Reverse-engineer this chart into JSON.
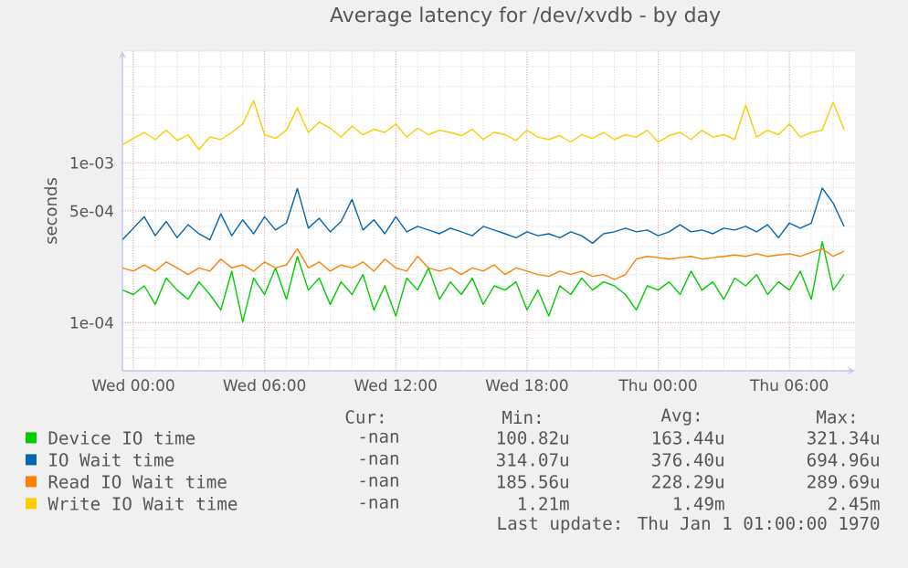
{
  "chart_data": {
    "type": "line",
    "title": "Average latency for /dev/xvdb - by day",
    "ylabel": "seconds",
    "categories": [
      null,
      "Wed 00:00",
      null,
      null,
      null,
      null,
      null,
      null,
      null,
      null,
      null,
      null,
      null,
      "Wed 06:00",
      null,
      null,
      null,
      null,
      null,
      null,
      null,
      null,
      null,
      null,
      null,
      "Wed 12:00",
      null,
      null,
      null,
      null,
      null,
      null,
      null,
      null,
      null,
      null,
      null,
      "Wed 18:00",
      null,
      null,
      null,
      null,
      null,
      null,
      null,
      null,
      null,
      null,
      null,
      "Thu 00:00",
      null,
      null,
      null,
      null,
      null,
      null,
      null,
      null,
      null,
      null,
      null,
      "Thu 06:00",
      null,
      null,
      null,
      null,
      null
    ],
    "ylim": [
      5e-05,
      0.005
    ],
    "yticks": [
      {
        "value": 0.0001,
        "label": "1e-04"
      },
      {
        "value": 0.0005,
        "label": "5e-04"
      },
      {
        "value": 0.001,
        "label": "1e-03"
      }
    ],
    "log": true,
    "grid": true,
    "legend": "bottom",
    "series": [
      {
        "name": "Device IO time",
        "color": "#00cc00",
        "values": [
          0.00016,
          0.00015,
          0.00017,
          0.00013,
          0.00019,
          0.00016,
          0.00014,
          0.00018,
          0.00015,
          0.00012,
          0.00021,
          0.000101,
          0.00019,
          0.00015,
          0.00022,
          0.00014,
          0.00026,
          0.00016,
          0.00019,
          0.00013,
          0.00018,
          0.00015,
          0.0002,
          0.00012,
          0.00017,
          0.00011,
          0.00019,
          0.00016,
          0.00022,
          0.00014,
          0.00018,
          0.00015,
          0.00019,
          0.00013,
          0.00017,
          0.00016,
          0.00018,
          0.00012,
          0.00016,
          0.00011,
          0.00017,
          0.00015,
          0.00019,
          0.00016,
          0.00018,
          0.00017,
          0.00015,
          0.00012,
          0.00017,
          0.00016,
          0.00018,
          0.00015,
          0.00021,
          0.00016,
          0.00018,
          0.00014,
          0.00019,
          0.00017,
          0.0002,
          0.00015,
          0.00018,
          0.00016,
          0.00021,
          0.00014,
          0.000321,
          0.00016,
          0.0002
        ]
      },
      {
        "name": "IO Wait time",
        "color": "#0066b3",
        "values": [
          0.00033,
          0.00039,
          0.00046,
          0.00035,
          0.00043,
          0.00034,
          0.00041,
          0.00036,
          0.00033,
          0.00048,
          0.00035,
          0.00044,
          0.00036,
          0.00046,
          0.00038,
          0.00042,
          0.00069,
          0.00039,
          0.00045,
          0.00037,
          0.00043,
          0.00059,
          0.00038,
          0.00044,
          0.00036,
          0.00046,
          0.00037,
          0.0004,
          0.00038,
          0.00036,
          0.00039,
          0.00037,
          0.00035,
          0.0004,
          0.00038,
          0.00036,
          0.00034,
          0.00037,
          0.00035,
          0.00036,
          0.00034,
          0.00037,
          0.00035,
          0.000314,
          0.00036,
          0.00037,
          0.00039,
          0.00037,
          0.00038,
          0.00035,
          0.00037,
          0.00041,
          0.00037,
          0.00038,
          0.00036,
          0.00039,
          0.00038,
          0.0004,
          0.00037,
          0.00041,
          0.00034,
          0.00042,
          0.00039,
          0.00042,
          0.000695,
          0.00056,
          0.0004
        ]
      },
      {
        "name": "Read IO Wait time",
        "color": "#ff8000",
        "values": [
          0.00022,
          0.00021,
          0.00023,
          0.00021,
          0.00024,
          0.00022,
          0.0002,
          0.00022,
          0.00021,
          0.00025,
          0.00022,
          0.00023,
          0.00021,
          0.00024,
          0.00022,
          0.00023,
          0.00029,
          0.00022,
          0.00024,
          0.00021,
          0.00023,
          0.00022,
          0.00024,
          0.00021,
          0.00025,
          0.00022,
          0.00021,
          0.00026,
          0.00022,
          0.00021,
          0.00022,
          0.0002,
          0.00022,
          0.00021,
          0.00023,
          0.0002,
          0.00022,
          0.00021,
          0.0002,
          0.000195,
          0.00021,
          0.0002,
          0.00021,
          0.000195,
          0.0002,
          0.000186,
          0.0002,
          0.00025,
          0.00026,
          0.000255,
          0.00025,
          0.000255,
          0.00026,
          0.00025,
          0.000255,
          0.00026,
          0.000265,
          0.00026,
          0.00027,
          0.00026,
          0.000265,
          0.00027,
          0.00026,
          0.000275,
          0.00029,
          0.00026,
          0.00028
        ]
      },
      {
        "name": "Write IO Wait time",
        "color": "#ffcc00",
        "values": [
          0.0013,
          0.00142,
          0.00155,
          0.0014,
          0.0016,
          0.00138,
          0.0015,
          0.00121,
          0.00145,
          0.0014,
          0.00155,
          0.00175,
          0.00245,
          0.0015,
          0.00142,
          0.0016,
          0.0022,
          0.00155,
          0.0018,
          0.00165,
          0.00145,
          0.0017,
          0.0015,
          0.00162,
          0.00155,
          0.00175,
          0.00145,
          0.00165,
          0.0015,
          0.0016,
          0.00155,
          0.00148,
          0.00162,
          0.0014,
          0.00155,
          0.0015,
          0.00138,
          0.0016,
          0.00145,
          0.0014,
          0.00148,
          0.00135,
          0.0015,
          0.00142,
          0.00155,
          0.0014,
          0.0015,
          0.00145,
          0.0016,
          0.00135,
          0.00148,
          0.00155,
          0.0014,
          0.0016,
          0.00145,
          0.0015,
          0.0014,
          0.0023,
          0.00145,
          0.0016,
          0.0015,
          0.00175,
          0.00145,
          0.00155,
          0.0016,
          0.0024,
          0.00162
        ]
      }
    ],
    "annotations": [
      "Cur:",
      "Min:",
      "Avg:",
      "Max:",
      "-nan",
      "100.82u",
      "163.44u",
      "321.34u",
      "-nan",
      "314.07u",
      "376.40u",
      "694.96u",
      "-nan",
      "185.56u",
      "228.29u",
      "289.69u",
      "-nan",
      "1.21m",
      "1.49m",
      "2.45m",
      "Last update: Thu Jan 1 01:00:00 1970"
    ]
  }
}
